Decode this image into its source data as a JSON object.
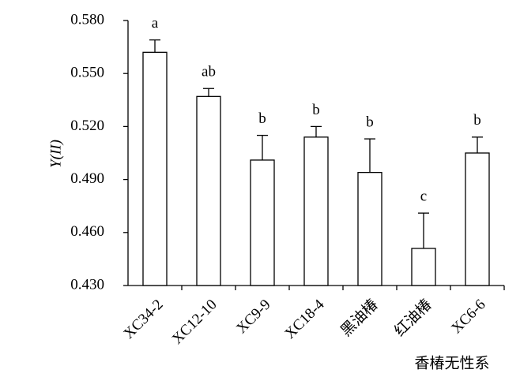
{
  "chart_data": {
    "type": "bar",
    "y_label": "Y(II)",
    "x_label": "香椿无性系",
    "categories": [
      "XC34-2",
      "XC12-10",
      "XC9-9",
      "XC18-4",
      "黑油椿",
      "红油椿",
      "XC6-6"
    ],
    "values": [
      0.562,
      0.537,
      0.501,
      0.514,
      0.494,
      0.451,
      0.505
    ],
    "errors": [
      0.007,
      0.0045,
      0.014,
      0.006,
      0.019,
      0.02,
      0.009
    ],
    "significance_letters": [
      "a",
      "ab",
      "b",
      "b",
      "b",
      "c",
      "b"
    ],
    "color": "#ffffff",
    "edge_color": "#000000",
    "ylim": [
      0.43,
      0.58
    ],
    "yticks": [
      {
        "value": 0.43,
        "label": "0.430"
      },
      {
        "value": 0.46,
        "label": "0.460"
      },
      {
        "value": 0.49,
        "label": "0.490"
      },
      {
        "value": 0.52,
        "label": "0.520"
      },
      {
        "value": 0.55,
        "label": "0.550"
      },
      {
        "value": 0.58,
        "label": "0.580"
      }
    ],
    "grid": false
  }
}
